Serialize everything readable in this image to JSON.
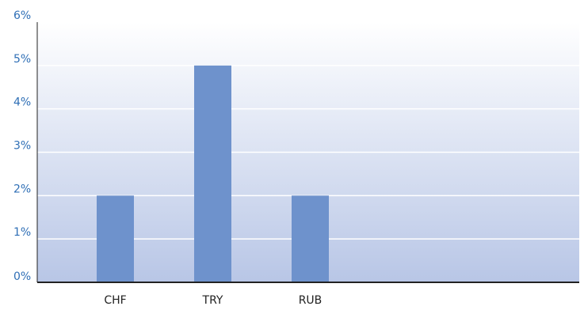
{
  "chart_data": {
    "type": "bar",
    "title": "",
    "xlabel": "",
    "ylabel": "",
    "categories": [
      "CHF",
      "TRY",
      "RUB"
    ],
    "values": [
      2,
      5,
      2
    ],
    "ylim": [
      0,
      6
    ],
    "yticks": [
      "0%",
      "1%",
      "2%",
      "3%",
      "4%",
      "5%",
      "6%"
    ],
    "grid": true,
    "legend": "none",
    "colors": {
      "bar": "#6e92cc",
      "plot_bg_top": "#ffffff",
      "plot_bg_bottom": "#b8c6e6",
      "gridline": "#ffffff",
      "axis": "#222222",
      "ytick_text": "#2f6fb6",
      "xtick_text": "#222222"
    }
  }
}
